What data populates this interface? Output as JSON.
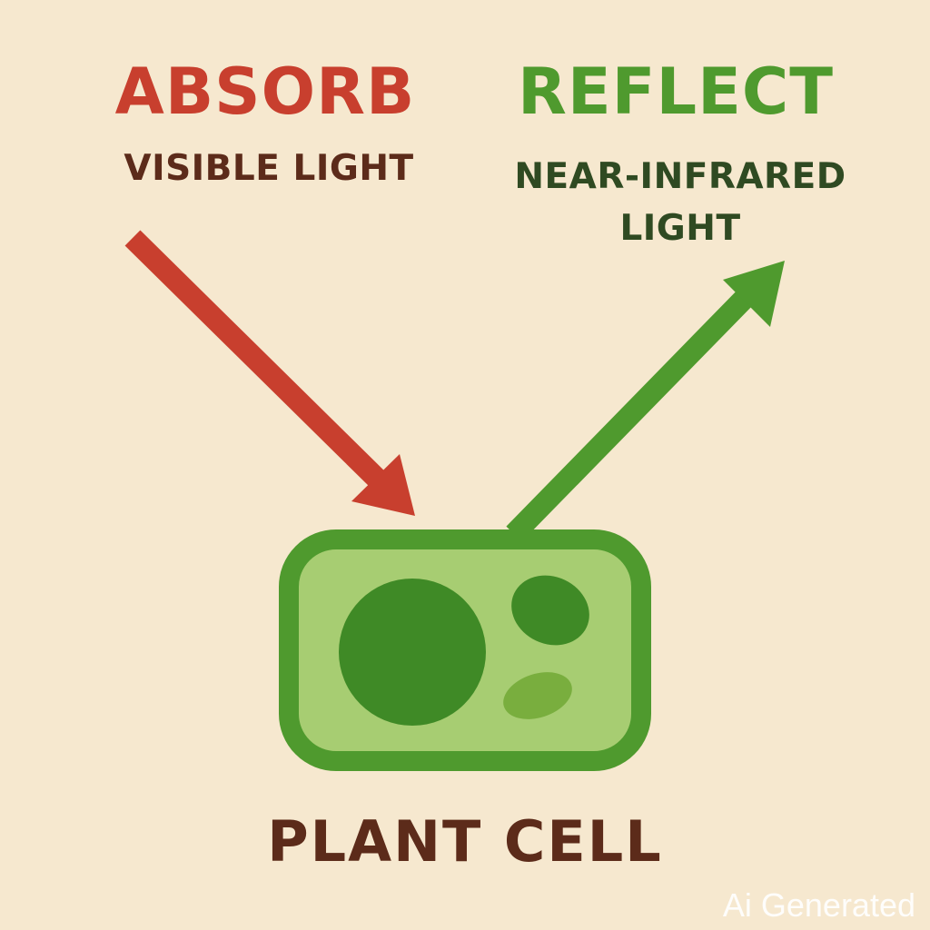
{
  "colors": {
    "background": "#f6e8cf",
    "absorb": "#c83f2e",
    "reflect": "#4f9a2e",
    "absorb_text": "#5c2b1a",
    "reflect_text": "#2f4a22",
    "cell_wall": "#4f9a2e",
    "cytoplasm": "#a7cd72",
    "nucleus": "#3f8a26",
    "organelle_dark": "#3f8a26",
    "organelle_light": "#79ae3e",
    "cell_label": "#5c2b1a"
  },
  "absorb": {
    "title": "ABSORB",
    "subtitle": "VISIBLE LIGHT"
  },
  "reflect": {
    "title": "REFLECT",
    "subtitle": "NEAR-INFRARED LIGHT"
  },
  "cell": {
    "label": "PLANT CELL"
  },
  "watermark": "Ai Generated",
  "icons": {
    "absorb_arrow": "arrow-down-right-icon",
    "reflect_arrow": "arrow-up-right-icon",
    "cell": "plant-cell-icon"
  }
}
